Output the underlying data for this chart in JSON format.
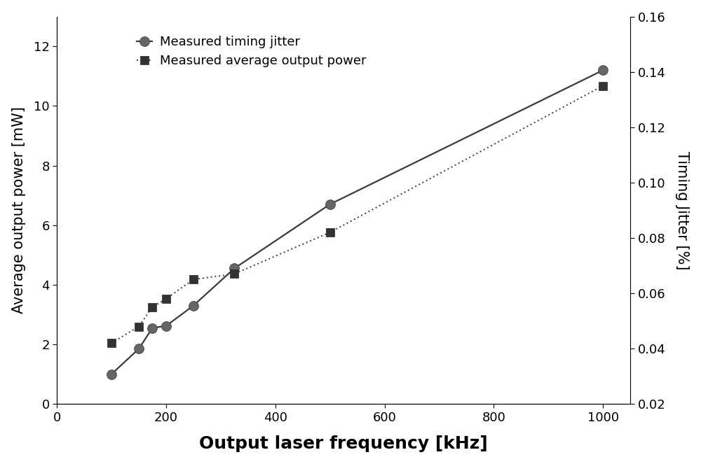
{
  "jitter_x": [
    100,
    150,
    175,
    200,
    250,
    325,
    500,
    1000
  ],
  "jitter_y": [
    1.0,
    1.85,
    2.55,
    2.62,
    3.3,
    4.55,
    6.7,
    11.2
  ],
  "power_x": [
    100,
    150,
    175,
    200,
    250,
    325,
    500,
    1000
  ],
  "power_y": [
    0.042,
    0.048,
    0.055,
    0.058,
    0.065,
    0.067,
    0.082,
    0.135
  ],
  "left_ylabel": "Average output power [mW]",
  "right_ylabel": "Timing Jitter [%]",
  "xlabel": "Output laser frequency [kHz]",
  "xlim": [
    0,
    1050
  ],
  "ylim_left": [
    0,
    13
  ],
  "ylim_right": [
    0.02,
    0.16
  ],
  "legend_jitter": "Measured timing jitter",
  "legend_power": "Measured average output power",
  "line_color": "#3a3a3a",
  "bg_color": "#ffffff",
  "xticks": [
    0,
    200,
    400,
    600,
    800,
    1000
  ],
  "yticks_left": [
    0,
    2,
    4,
    6,
    8,
    10,
    12
  ],
  "yticks_right": [
    0.02,
    0.04,
    0.06,
    0.08,
    0.1,
    0.12,
    0.14,
    0.16
  ],
  "title_fontsize": 18,
  "label_fontsize": 15,
  "tick_fontsize": 13,
  "legend_fontsize": 13
}
